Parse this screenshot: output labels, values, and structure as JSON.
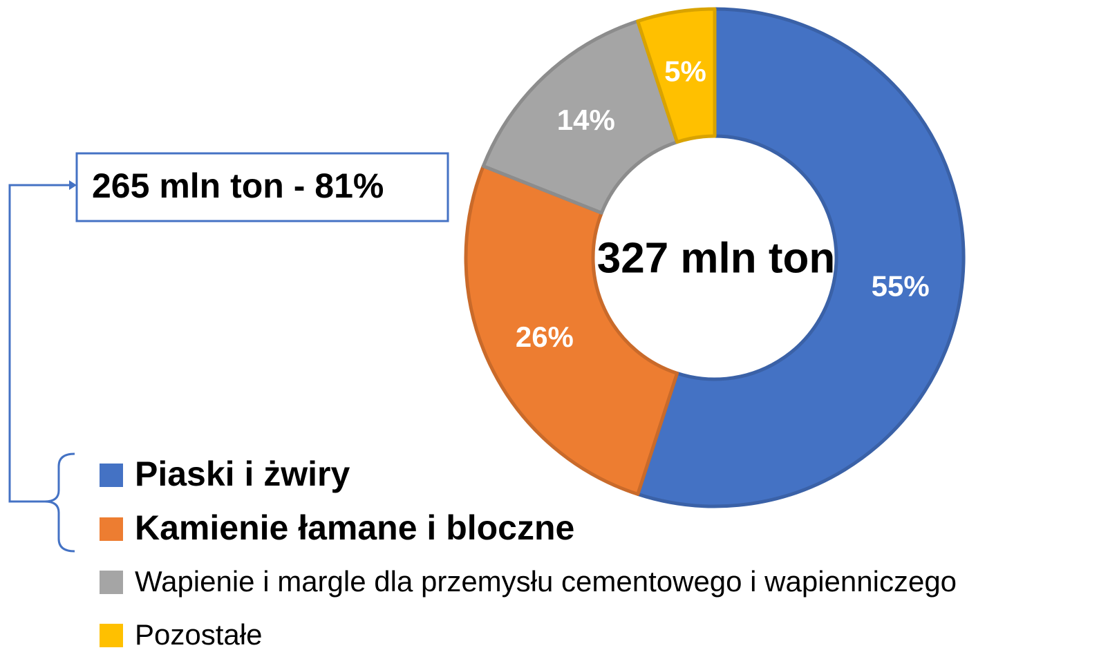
{
  "chart_data": {
    "type": "pie",
    "donut": true,
    "categories": [
      "Piaski i żwiry",
      "Kamienie łamane i bloczne",
      "Wapienie i margle dla przemysłu cementowego i wapienniczego",
      "Pozostałe"
    ],
    "values": [
      55,
      26,
      14,
      5
    ],
    "value_labels": [
      "55%",
      "26%",
      "14%",
      "5%"
    ],
    "colors": [
      "#4472c4",
      "#ed7d31",
      "#a5a5a5",
      "#ffc000"
    ],
    "center_label": "327 mln ton",
    "annotation": "265 mln ton - 81%"
  }
}
